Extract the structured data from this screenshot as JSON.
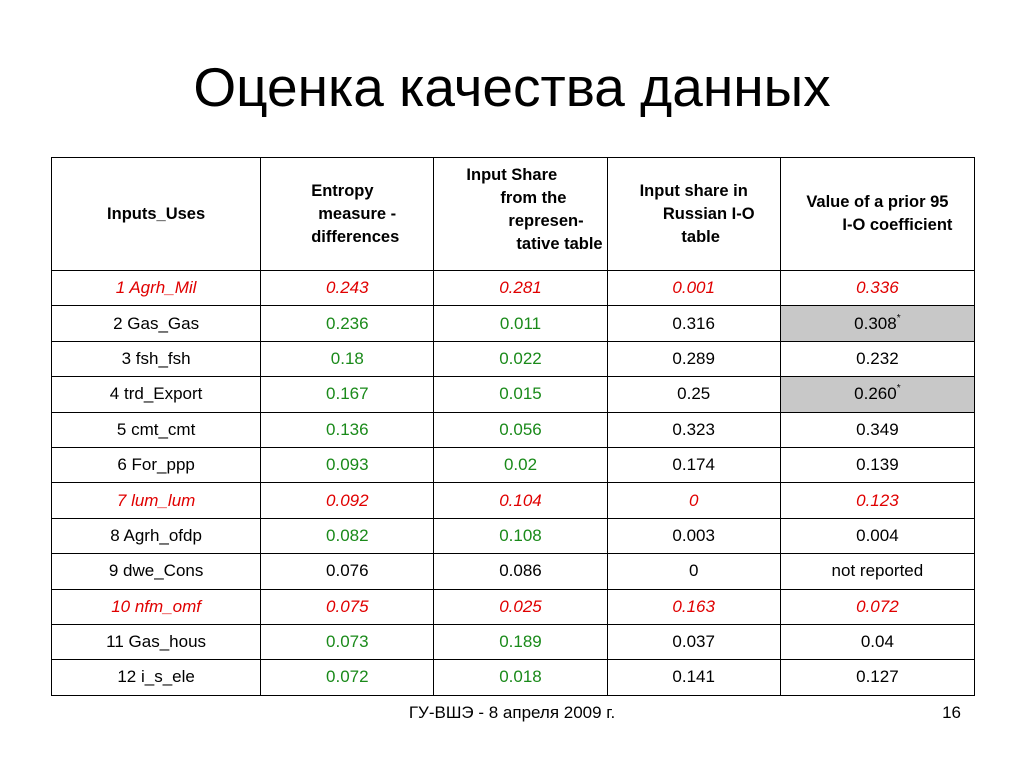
{
  "title": "Оценка качества данных",
  "table": {
    "headers": [
      [
        "Inputs_Uses"
      ],
      [
        "Entropy",
        "measure -",
        "differences"
      ],
      [
        "Input Share",
        "from the",
        "represen-",
        "tative table"
      ],
      [
        "Input share in",
        "Russian I-O",
        "table"
      ],
      [
        "Value of a prior 95",
        "I-O coefficient"
      ]
    ],
    "rows": [
      {
        "style": "red",
        "cells": [
          "1 Agrh_Mil",
          "0.243",
          "0.281",
          "0.001",
          "0.336"
        ],
        "mark": ""
      },
      {
        "style": "green",
        "cells": [
          "2 Gas_Gas",
          "0.236",
          "0.011",
          "0.316",
          "0.308"
        ],
        "mark": "*"
      },
      {
        "style": "green",
        "cells": [
          "3 fsh_fsh",
          "0.18",
          "0.022",
          "0.289",
          "0.232"
        ],
        "mark": ""
      },
      {
        "style": "green",
        "cells": [
          "4 trd_Export",
          "0.167",
          "0.015",
          "0.25",
          "0.260"
        ],
        "mark": "*"
      },
      {
        "style": "green",
        "cells": [
          "5 cmt_cmt",
          "0.136",
          "0.056",
          "0.323",
          "0.349"
        ],
        "mark": ""
      },
      {
        "style": "green",
        "cells": [
          "6 For_ppp",
          "0.093",
          "0.02",
          "0.174",
          "0.139"
        ],
        "mark": ""
      },
      {
        "style": "red",
        "cells": [
          "7 lum_lum",
          "0.092",
          "0.104",
          "0",
          "0.123"
        ],
        "mark": ""
      },
      {
        "style": "green",
        "cells": [
          "8 Agrh_ofdp",
          "0.082",
          "0.108",
          "0.003",
          "0.004"
        ],
        "mark": ""
      },
      {
        "style": "black",
        "cells": [
          "9 dwe_Cons",
          "0.076",
          "0.086",
          "0",
          "not reported"
        ],
        "mark": ""
      },
      {
        "style": "red",
        "cells": [
          "10 nfm_omf",
          "0.075",
          "0.025",
          "0.163",
          "0.072"
        ],
        "mark": ""
      },
      {
        "style": "green",
        "cells": [
          "11 Gas_hous",
          "0.073",
          "0.189",
          "0.037",
          "0.04"
        ],
        "mark": ""
      },
      {
        "style": "green",
        "cells": [
          "12 i_s_ele",
          "0.072",
          "0.018",
          "0.141",
          "0.127"
        ],
        "mark": ""
      }
    ]
  },
  "colors": {
    "green": "#1a8a1a",
    "red": "#e00000",
    "highlight": "#c8c8c8"
  },
  "footer": "ГУ-ВШЭ - 8 апреля 2009 г.",
  "page_number": "16"
}
